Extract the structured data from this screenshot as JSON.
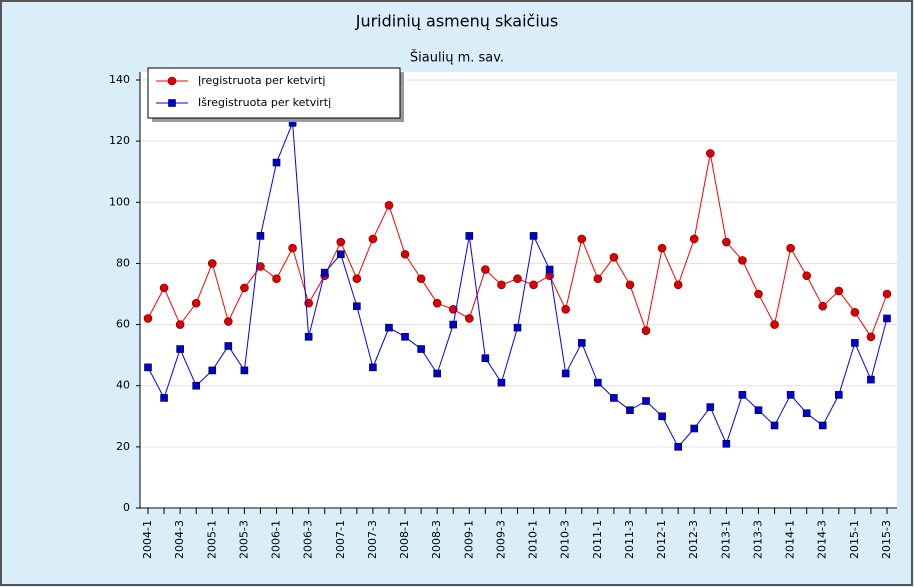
{
  "chart_data": {
    "type": "line",
    "title": "Juridinių asmenų skaičius",
    "subtitle": "Šiaulių m. sav.",
    "categories": [
      "2004-1",
      null,
      "2004-3",
      null,
      "2005-1",
      null,
      "2005-3",
      null,
      "2006-1",
      null,
      "2006-3",
      null,
      "2007-1",
      null,
      "2007-3",
      null,
      "2008-1",
      null,
      "2008-3",
      null,
      "2009-1",
      null,
      "2009-3",
      null,
      "2010-1",
      null,
      "2010-3",
      null,
      "2011-1",
      null,
      "2011-3",
      null,
      "2012-1",
      null,
      "2012-3",
      null,
      "2013-1",
      null,
      "2013-3",
      null,
      "2014-1",
      null,
      "2014-3",
      null,
      "2015-1",
      null,
      "2015-3"
    ],
    "series": [
      {
        "name": "Įregistruota per ketvirtį",
        "color": "#ff0000",
        "marker_color": "#dd0000",
        "marker": "circle",
        "values": [
          62,
          72,
          60,
          67,
          80,
          61,
          72,
          79,
          75,
          85,
          67,
          76,
          87,
          75,
          88,
          99,
          83,
          75,
          67,
          65,
          62,
          78,
          73,
          75,
          73,
          76,
          65,
          88,
          75,
          82,
          73,
          58,
          85,
          73,
          88,
          116,
          87,
          81,
          70,
          60,
          85,
          76,
          66,
          71,
          64,
          56,
          70
        ]
      },
      {
        "name": "Išregistruota per ketvirtį",
        "color": "#0000ff",
        "marker_color": "#0000cc",
        "marker": "square",
        "values": [
          46,
          36,
          52,
          40,
          45,
          53,
          45,
          89,
          113,
          126,
          56,
          77,
          83,
          66,
          46,
          59,
          56,
          52,
          44,
          60,
          89,
          49,
          41,
          59,
          89,
          78,
          44,
          54,
          41,
          36,
          32,
          35,
          30,
          20,
          26,
          33,
          21,
          37,
          32,
          27,
          37,
          31,
          27,
          37,
          54,
          42,
          62
        ]
      }
    ],
    "ylim": [
      0,
      140
    ],
    "yticks": [
      0,
      20,
      40,
      60,
      80,
      100,
      120,
      140
    ],
    "grid": true,
    "legend": "upper left"
  }
}
